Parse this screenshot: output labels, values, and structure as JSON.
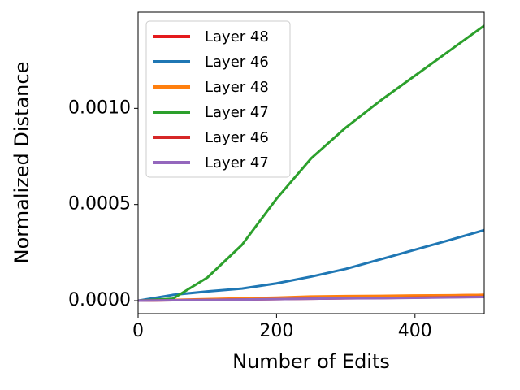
{
  "chart_data": {
    "type": "line",
    "x_label": "Number of Edits",
    "y_label": "Normalized Distance",
    "x": [
      0,
      50,
      100,
      150,
      200,
      250,
      300,
      350,
      400,
      450,
      500
    ],
    "series": [
      {
        "name": "Layer 48",
        "color": "#e41a1c",
        "values": [
          0,
          3e-06,
          6e-06,
          1e-05,
          1.4e-05,
          1.7e-05,
          2e-05,
          2.2e-05,
          2.5e-05,
          2.7e-05,
          3e-05
        ]
      },
      {
        "name": "Layer 46",
        "color": "#1f77b4",
        "values": [
          0,
          3e-05,
          4.8e-05,
          6.3e-05,
          9e-05,
          0.000125,
          0.000165,
          0.000215,
          0.000265,
          0.000315,
          0.000367
        ]
      },
      {
        "name": "Layer 48",
        "color": "#ff7f0e",
        "values": [
          0,
          4e-06,
          8e-06,
          1.2e-05,
          1.6e-05,
          2.2e-05,
          2.4e-05,
          2.5e-05,
          2.7e-05,
          2.8e-05,
          3e-05
        ]
      },
      {
        "name": "Layer 47",
        "color": "#2ca02c",
        "values": [
          0,
          1e-05,
          0.00012,
          0.00029,
          0.00053,
          0.00074,
          0.0009,
          0.00104,
          0.00117,
          0.0013,
          0.00143
        ]
      },
      {
        "name": "Layer 46",
        "color": "#d62728",
        "values": [
          0,
          2e-06,
          4e-06,
          6e-06,
          8e-06,
          1e-05,
          1.2e-05,
          1.4e-05,
          1.6e-05,
          1.8e-05,
          2e-05
        ]
      },
      {
        "name": "Layer 47",
        "color": "#9467bd",
        "values": [
          0,
          2e-06,
          4e-06,
          6e-06,
          8e-06,
          1e-05,
          1.2e-05,
          1.3e-05,
          1.5e-05,
          1.7e-05,
          1.9e-05
        ]
      }
    ],
    "xlim": [
      0,
      500
    ],
    "ylim": [
      -6.75e-05,
      0.0015
    ],
    "xticks": [
      0,
      200,
      400
    ],
    "yticks": [
      {
        "value": 0,
        "label": "0.0000"
      },
      {
        "value": 0.0005,
        "label": "0.0005"
      },
      {
        "value": 0.001,
        "label": "0.0010"
      }
    ],
    "legend": "upper left",
    "grid": false
  }
}
